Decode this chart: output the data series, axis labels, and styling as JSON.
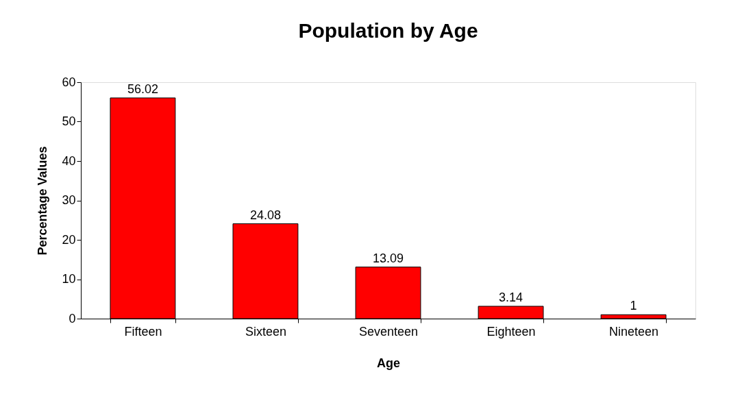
{
  "chart_data": {
    "type": "bar",
    "title": "Population by Age",
    "xlabel": "Age",
    "ylabel": "Percentage Values",
    "categories": [
      "Fifteen",
      "Sixteen",
      "Seventeen",
      "Eighteen",
      "Nineteen"
    ],
    "values": [
      56.02,
      24.08,
      13.09,
      3.14,
      1
    ],
    "color": "#ff0000",
    "ylim": [
      0,
      60
    ],
    "yticks": [
      0,
      10,
      20,
      30,
      40,
      50,
      60
    ],
    "grid": false,
    "data_labels": true
  }
}
